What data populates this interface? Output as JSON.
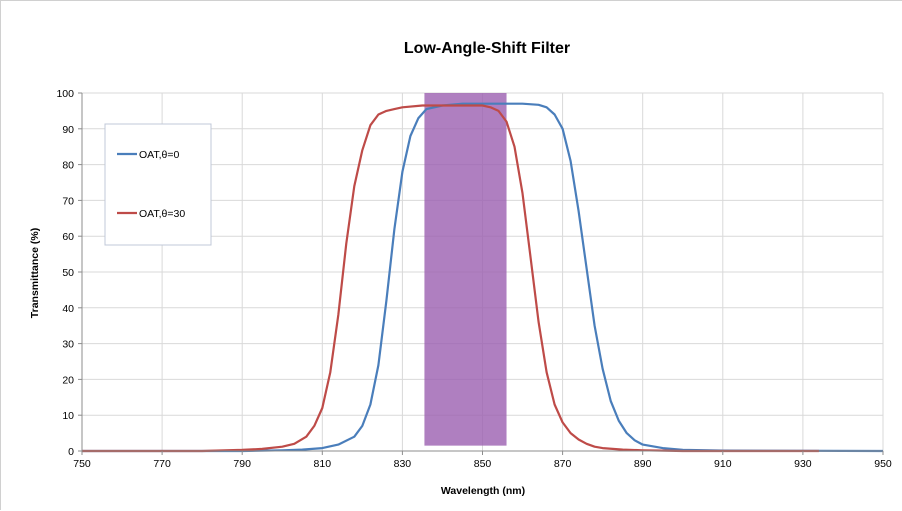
{
  "chart_data": {
    "type": "line",
    "title": "Low-Angle-Shift Filter",
    "xlabel": "Wavelength (nm)",
    "ylabel": "Transmittance (%)",
    "xlim": [
      750,
      950
    ],
    "ylim": [
      0,
      100
    ],
    "xticks": [
      750,
      770,
      790,
      810,
      830,
      850,
      870,
      890,
      910,
      930,
      950
    ],
    "yticks": [
      0,
      10,
      20,
      30,
      40,
      50,
      60,
      70,
      80,
      90,
      100
    ],
    "grid": true,
    "legend_position": "top-left",
    "highlight_band": {
      "x": [
        835.5,
        856
      ],
      "y": [
        1.5,
        100
      ],
      "color": "#9b5fb0"
    },
    "series": [
      {
        "name": "OAT,θ=0",
        "color": "#4a7ebb",
        "x": [
          750,
          790,
          800,
          805,
          810,
          814,
          818,
          820,
          822,
          824,
          826,
          828,
          830,
          832,
          834,
          836,
          840,
          845,
          850,
          855,
          860,
          864,
          866,
          868,
          870,
          872,
          874,
          876,
          878,
          880,
          882,
          884,
          886,
          888,
          890,
          895,
          900,
          910,
          950
        ],
        "y": [
          0,
          0,
          0.2,
          0.4,
          0.8,
          1.8,
          4,
          7,
          13,
          24,
          42,
          62,
          78,
          88,
          93,
          95.5,
          96.5,
          97,
          97,
          97,
          97,
          96.7,
          96,
          94,
          90,
          81,
          67,
          51,
          35,
          23,
          14,
          8.5,
          5,
          3,
          1.8,
          0.8,
          0.3,
          0.1,
          0
        ]
      },
      {
        "name": "OAT,θ=30",
        "color": "#be4b48",
        "x": [
          750,
          780,
          790,
          795,
          800,
          803,
          806,
          808,
          810,
          812,
          814,
          816,
          818,
          820,
          822,
          824,
          826,
          828,
          830,
          835,
          840,
          845,
          850,
          852,
          854,
          856,
          858,
          860,
          862,
          864,
          866,
          868,
          870,
          872,
          874,
          876,
          878,
          880,
          885,
          890,
          895,
          900,
          934
        ],
        "y": [
          0,
          0,
          0.3,
          0.6,
          1.2,
          2,
          4,
          7,
          12,
          22,
          38,
          58,
          74,
          84,
          91,
          94,
          95,
          95.5,
          96,
          96.5,
          96.5,
          96.5,
          96.5,
          96,
          95,
          92,
          85,
          72,
          54,
          36,
          22,
          13,
          8,
          5,
          3.2,
          2,
          1.2,
          0.8,
          0.4,
          0.2,
          0.1,
          0,
          0
        ]
      }
    ]
  }
}
